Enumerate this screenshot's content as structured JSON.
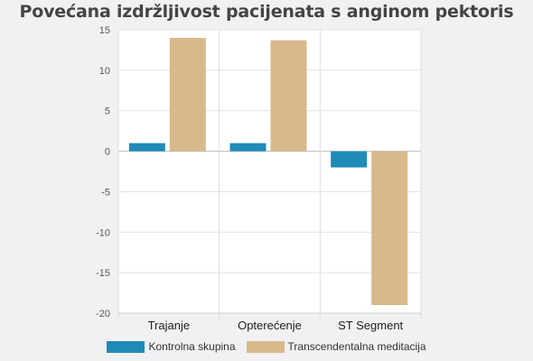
{
  "chart_data": {
    "type": "bar",
    "title": "Povećana izdržljivost pacijenata s anginom pektoris",
    "categories": [
      "Trajanje",
      "Opterećenje",
      "ST Segment"
    ],
    "series": [
      {
        "name": "Kontrolna skupina",
        "color": "#1f8bb8",
        "values": [
          1,
          1,
          -2
        ]
      },
      {
        "name": "Transcendentalna meditacija",
        "color": "#d8b98b",
        "values": [
          14,
          13.7,
          -19
        ]
      }
    ],
    "ylim": [
      -20,
      15
    ],
    "yticks": [
      -20,
      -15,
      -10,
      -5,
      0,
      5,
      10,
      15
    ],
    "grid": true,
    "legend": "bottom"
  }
}
